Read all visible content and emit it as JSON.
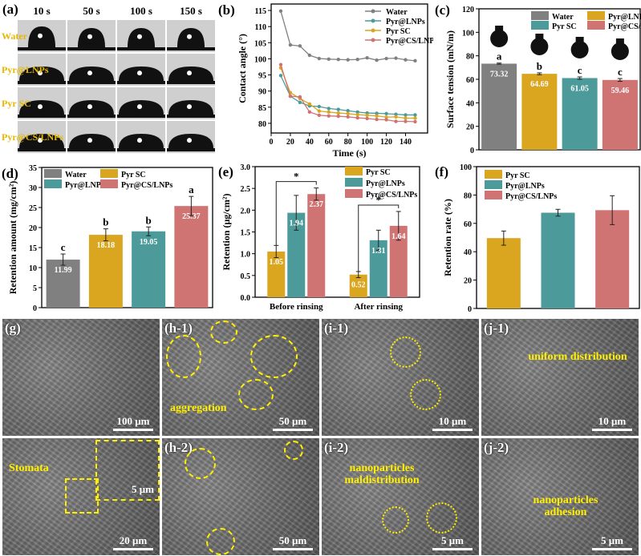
{
  "colors": {
    "water": "#808080",
    "yellow": "#dba61f",
    "teal": "#4c9a9a",
    "red": "#d07373"
  },
  "panel_a": {
    "label": "(a)",
    "times": [
      "10 s",
      "50 s",
      "100 s",
      "150 s"
    ],
    "rows": [
      "Water",
      "Pyr@LNPs",
      "Pyr SC",
      "Pyr@CS/LNPs"
    ]
  },
  "chart_data": [
    {
      "id": "b",
      "panel_label": "(b)",
      "type": "line",
      "xlabel": "Time (s)",
      "ylabel": "Contact angle (°)",
      "xlim": [
        0,
        163
      ],
      "ylim": [
        77,
        117
      ],
      "xticks": [
        0,
        20,
        40,
        60,
        80,
        100,
        120,
        140
      ],
      "yticks": [
        80,
        85,
        90,
        95,
        100,
        105,
        110,
        115
      ],
      "legend": "top-right",
      "x": [
        10,
        20,
        30,
        40,
        50,
        60,
        70,
        80,
        90,
        100,
        110,
        120,
        130,
        140,
        150
      ],
      "series": [
        {
          "name": "Water",
          "color": "#808080",
          "values": [
            114.8,
            104.3,
            104.0,
            101.1,
            100.1,
            99.9,
            99.8,
            99.7,
            99.8,
            100.3,
            99.6,
            100.1,
            100.2,
            99.7,
            99.4
          ]
        },
        {
          "name": "Pyr@LNPs",
          "color": "#4c9a9a",
          "values": [
            94.8,
            88.4,
            86.5,
            85.4,
            85.2,
            84.6,
            84.3,
            83.9,
            83.5,
            83.2,
            83.1,
            83.0,
            82.8,
            82.6,
            82.6
          ]
        },
        {
          "name": "Pyr SC",
          "color": "#dba61f",
          "values": [
            97.2,
            89.5,
            87.7,
            86.0,
            83.8,
            83.5,
            83.2,
            83.0,
            82.7,
            82.5,
            82.3,
            81.9,
            82.0,
            81.6,
            81.6
          ]
        },
        {
          "name": "Pyr@CS/LNPs",
          "color": "#d07373",
          "values": [
            98.2,
            88.4,
            88.2,
            83.5,
            82.5,
            82.3,
            82.2,
            82.0,
            81.7,
            81.5,
            81.2,
            81.1,
            80.6,
            80.6,
            80.5
          ]
        }
      ]
    },
    {
      "id": "c",
      "panel_label": "(c)",
      "type": "bar",
      "ylabel": "Surface tension (mN/m)",
      "ylim": [
        0,
        120
      ],
      "yticks": [
        0,
        20,
        40,
        60,
        80,
        100,
        120
      ],
      "legend": "top-right",
      "legend_entries": [
        {
          "name": "Water",
          "color": "#808080"
        },
        {
          "name": "Pyr@LNPs",
          "color": "#dba61f"
        },
        {
          "name": "Pyr SC",
          "color": "#4c9a9a"
        },
        {
          "name": "Pyr@CS/LNPs",
          "color": "#d07373"
        }
      ],
      "bars": [
        {
          "value": 73.32,
          "label": "73.32",
          "err": 0.5,
          "sig": "a",
          "color": "#808080"
        },
        {
          "value": 64.69,
          "label": "64.69",
          "err": 0.8,
          "sig": "b",
          "color": "#dba61f"
        },
        {
          "value": 61.05,
          "label": "61.05",
          "err": 1.0,
          "sig": "c",
          "color": "#4c9a9a"
        },
        {
          "value": 59.46,
          "label": "59.46",
          "err": 1.2,
          "sig": "c",
          "color": "#d07373"
        }
      ]
    },
    {
      "id": "d",
      "panel_label": "(d)",
      "type": "bar",
      "ylabel": "Retention amount (mg/cm²)",
      "ylim": [
        0,
        35
      ],
      "yticks": [
        0,
        5,
        10,
        15,
        20,
        25,
        30,
        35
      ],
      "legend": "top",
      "legend_entries": [
        {
          "name": "Water",
          "color": "#808080"
        },
        {
          "name": "Pyr SC",
          "color": "#dba61f"
        },
        {
          "name": "Pyr@LNPs",
          "color": "#4c9a9a"
        },
        {
          "name": "Pyr@CS/LNPs",
          "color": "#d07373"
        }
      ],
      "bars": [
        {
          "value": 11.99,
          "label": "11.99",
          "err": 1.4,
          "sig": "c",
          "color": "#808080"
        },
        {
          "value": 18.18,
          "label": "18.18",
          "err": 1.5,
          "sig": "b",
          "color": "#dba61f"
        },
        {
          "value": 19.05,
          "label": "19.05",
          "err": 1.1,
          "sig": "b",
          "color": "#4c9a9a"
        },
        {
          "value": 25.37,
          "label": "25.37",
          "err": 2.4,
          "sig": "a",
          "color": "#d07373"
        }
      ]
    },
    {
      "id": "e",
      "panel_label": "(e)",
      "type": "grouped-bar",
      "ylabel": "Retention (μg/cm²)",
      "ylim": [
        0,
        3.0
      ],
      "yticks": [
        0.0,
        0.5,
        1.0,
        1.5,
        2.0,
        2.5,
        3.0
      ],
      "legend": "top-right",
      "categories": [
        "Before rinsing",
        "After rinsing"
      ],
      "significance": "*",
      "series": [
        {
          "name": "Pyr SC",
          "color": "#dba61f",
          "values": [
            1.05,
            0.52
          ],
          "err": [
            0.14,
            0.07
          ]
        },
        {
          "name": "Pyr@LNPs",
          "color": "#4c9a9a",
          "values": [
            1.94,
            1.31
          ],
          "err": [
            0.4,
            0.23
          ]
        },
        {
          "name": "Pyr@CS/LNPs",
          "color": "#d07373",
          "values": [
            2.37,
            1.64
          ],
          "err": [
            0.14,
            0.33
          ]
        }
      ]
    },
    {
      "id": "f",
      "panel_label": "(f)",
      "type": "bar",
      "ylabel": "Retention rate (%)",
      "ylim": [
        0,
        100
      ],
      "yticks": [
        0,
        20,
        40,
        60,
        80,
        100
      ],
      "legend": "top-left",
      "legend_entries": [
        {
          "name": "Pyr SC",
          "color": "#dba61f"
        },
        {
          "name": "Pyr@LNPs",
          "color": "#4c9a9a"
        },
        {
          "name": "Pyr@CS/LNPs",
          "color": "#d07373"
        }
      ],
      "bars": [
        {
          "value": 49.6,
          "err": 5.0,
          "color": "#dba61f"
        },
        {
          "value": 67.5,
          "err": 2.4,
          "color": "#4c9a9a"
        },
        {
          "value": 69.3,
          "err": 10.2,
          "color": "#d07373"
        }
      ]
    }
  ],
  "sem": [
    {
      "label": "(g)",
      "scale": "100 μm"
    },
    {
      "label": "(h-1)",
      "scale": "50 μm",
      "annotation": "aggregation"
    },
    {
      "label": "(i-1)",
      "scale": "10 μm"
    },
    {
      "label": "(j-1)",
      "scale": "10 μm",
      "annotation": "uniform distribution"
    },
    {
      "label": "",
      "scale": "20 μm",
      "annotation": "Stomata",
      "inset_scale": "5 μm"
    },
    {
      "label": "(h-2)",
      "scale": "50 μm"
    },
    {
      "label": "(i-2)",
      "scale": "5 μm",
      "annotation": "nanoparticles maldistribution"
    },
    {
      "label": "(j-2)",
      "scale": "5 μm",
      "annotation": "nanoparticles adhesion"
    }
  ]
}
